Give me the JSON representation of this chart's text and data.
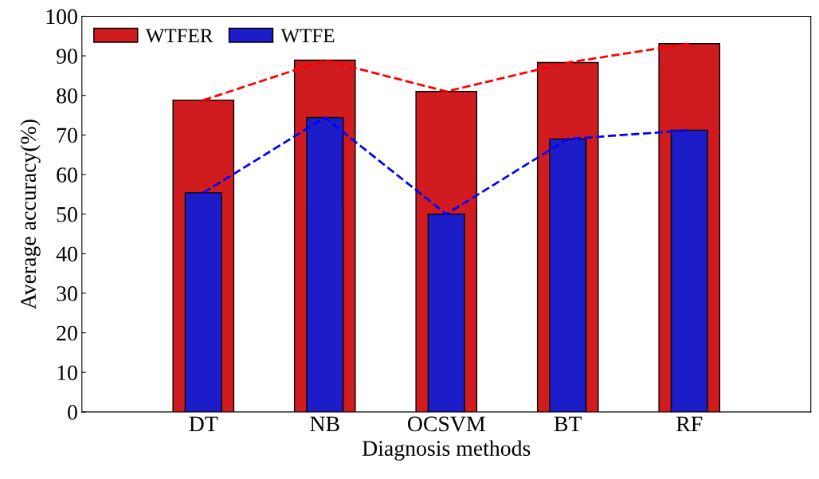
{
  "chart_data": {
    "type": "bar",
    "xlabel": "Diagnosis methods",
    "ylabel": "Average accuracy(%)",
    "categories": [
      "DT",
      "NB",
      "OCSVM",
      "BT",
      "RF"
    ],
    "series": [
      {
        "name": "WTFER",
        "color": "#d01c1f",
        "values": [
          78.8,
          88.9,
          81.0,
          88.3,
          93.1
        ]
      },
      {
        "name": "WTFE",
        "color": "#1c1cc8",
        "values": [
          55.4,
          74.4,
          50.0,
          69.0,
          71.2
        ]
      },
      {
        "type": "line",
        "color": "#ff0000",
        "values": [
          78.8,
          88.9,
          81.0,
          88.3,
          93.1
        ],
        "line_style": "dashed"
      },
      {
        "type": "line",
        "color": "#0000ff",
        "values": [
          55.4,
          74.4,
          50.0,
          69.0,
          71.2
        ],
        "line_style": "dashed"
      }
    ],
    "ylim": [
      0,
      100
    ],
    "yticks": [
      0,
      10,
      20,
      30,
      40,
      50,
      60,
      70,
      80,
      90,
      100
    ],
    "legend": "top left",
    "grid": false
  }
}
